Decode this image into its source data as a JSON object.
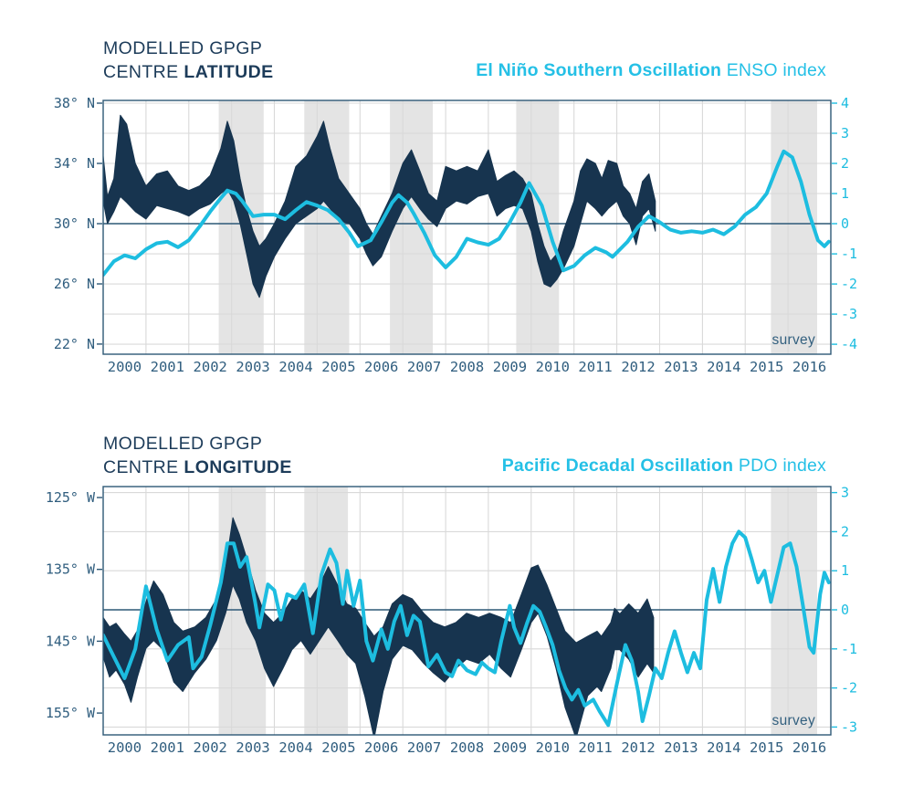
{
  "colors": {
    "navy_band": "#17344f",
    "cyan": "#1dbde0",
    "title_navy": "#1d3c5a",
    "axis_text": "#2f5d7e",
    "grid": "#d9d9d9",
    "band_gray": "#e4e4e4",
    "frame": "#2d5876"
  },
  "chart_data": [
    {
      "type": "area+line",
      "title": {
        "line1": "MODELLED GPGP",
        "line2_prefix": "CENTRE ",
        "line2_bold": "LATITUDE"
      },
      "legend": {
        "bold": "El Niño Southern Oscillation",
        "regular": " ENSO index"
      },
      "survey_label": "survey",
      "x_axis": {
        "range": [
          2000,
          2017
        ],
        "tick_labels": [
          "2000",
          "2001",
          "2002",
          "2003",
          "2004",
          "2005",
          "2006",
          "2007",
          "2008",
          "2009",
          "2010",
          "2011",
          "2012",
          "2013",
          "2014",
          "2015",
          "2016"
        ],
        "grid": "yearly"
      },
      "left_axis": {
        "ticks": [
          38,
          34,
          30,
          26,
          22
        ],
        "labels": [
          "38° N",
          "34° N",
          "30° N",
          "26° N",
          "22° N"
        ],
        "range": [
          38.18,
          21.33
        ]
      },
      "right_axis": {
        "ticks": [
          4,
          3,
          2,
          1,
          0,
          -1,
          -2,
          -3,
          -4
        ],
        "labels": [
          "4",
          "3",
          "2",
          "1",
          "0",
          "-1",
          "-2",
          "-3",
          "-4"
        ],
        "range": [
          4.09,
          -4.33
        ]
      },
      "highlight_bands": [
        [
          2002.7,
          2003.75
        ],
        [
          2004.7,
          2005.75
        ],
        [
          2006.7,
          2007.7
        ],
        [
          2009.65,
          2010.65
        ],
        [
          2015.6,
          2016.68
        ]
      ],
      "band_series": {
        "name": "Modelled GPGP centre latitude range (°N)",
        "t": [
          2000.0,
          2000.1,
          2000.25,
          2000.4,
          2000.55,
          2000.75,
          2001.0,
          2001.25,
          2001.5,
          2001.75,
          2002.0,
          2002.25,
          2002.5,
          2002.75,
          2002.9,
          2003.05,
          2003.2,
          2003.35,
          2003.5,
          2003.65,
          2003.8,
          2004.0,
          2004.25,
          2004.5,
          2004.75,
          2005.0,
          2005.15,
          2005.3,
          2005.5,
          2005.75,
          2006.0,
          2006.15,
          2006.3,
          2006.5,
          2006.75,
          2007.0,
          2007.2,
          2007.4,
          2007.6,
          2007.8,
          2008.0,
          2008.25,
          2008.5,
          2008.75,
          2009.0,
          2009.2,
          2009.4,
          2009.6,
          2009.8,
          2010.0,
          2010.15,
          2010.3,
          2010.45,
          2010.6,
          2010.75,
          2011.0,
          2011.15,
          2011.3,
          2011.5,
          2011.65,
          2011.8,
          2012.0,
          2012.15,
          2012.3,
          2012.45,
          2012.6,
          2012.75,
          2012.9
        ],
        "lower": [
          31.5,
          30.0,
          30.8,
          31.8,
          31.4,
          30.8,
          30.3,
          31.2,
          31.0,
          30.8,
          30.5,
          31.0,
          31.3,
          32.0,
          32.3,
          31.5,
          30.0,
          28.0,
          26.0,
          25.1,
          26.5,
          27.8,
          29.0,
          30.0,
          30.5,
          31.0,
          31.5,
          31.0,
          30.2,
          30.0,
          29.0,
          28.0,
          27.2,
          27.8,
          29.5,
          31.0,
          31.8,
          31.0,
          30.3,
          29.8,
          31.0,
          31.5,
          31.3,
          31.8,
          32.0,
          30.5,
          31.0,
          31.2,
          31.0,
          29.5,
          27.5,
          26.0,
          25.8,
          26.3,
          27.0,
          28.5,
          30.0,
          31.5,
          31.0,
          30.5,
          31.0,
          31.5,
          30.5,
          30.0,
          28.6,
          30.5,
          31.0,
          29.5
        ],
        "upper": [
          34.5,
          31.8,
          33.0,
          37.2,
          36.6,
          34.0,
          32.5,
          33.3,
          33.5,
          32.5,
          32.2,
          32.5,
          33.2,
          35.0,
          36.8,
          35.5,
          33.0,
          31.0,
          29.5,
          28.5,
          29.0,
          30.0,
          31.5,
          33.8,
          34.5,
          35.8,
          36.8,
          35.0,
          33.0,
          32.0,
          31.0,
          30.0,
          29.3,
          30.5,
          32.0,
          34.0,
          34.9,
          33.5,
          32.0,
          31.5,
          33.8,
          33.5,
          33.8,
          33.5,
          34.9,
          32.8,
          33.2,
          33.5,
          33.0,
          32.0,
          30.0,
          28.5,
          27.5,
          28.0,
          29.5,
          31.5,
          33.5,
          34.3,
          34.0,
          33.0,
          34.2,
          34.0,
          32.5,
          32.0,
          31.0,
          32.8,
          33.3,
          31.5
        ]
      },
      "line_series": {
        "name": "ENSO index",
        "t": [
          2000.0,
          2000.25,
          2000.5,
          2000.75,
          2001.0,
          2001.25,
          2001.5,
          2001.75,
          2002.0,
          2002.25,
          2002.5,
          2002.75,
          2002.9,
          2003.1,
          2003.25,
          2003.5,
          2003.75,
          2004.0,
          2004.25,
          2004.5,
          2004.75,
          2005.0,
          2005.25,
          2005.5,
          2005.75,
          2005.95,
          2006.25,
          2006.5,
          2006.75,
          2006.9,
          2007.1,
          2007.25,
          2007.5,
          2007.75,
          2008.0,
          2008.25,
          2008.5,
          2008.75,
          2009.0,
          2009.25,
          2009.5,
          2009.75,
          2009.95,
          2010.25,
          2010.5,
          2010.75,
          2011.0,
          2011.25,
          2011.5,
          2011.75,
          2011.9,
          2012.25,
          2012.5,
          2012.75,
          2013.0,
          2013.25,
          2013.5,
          2013.75,
          2014.0,
          2014.25,
          2014.5,
          2014.75,
          2015.0,
          2015.25,
          2015.5,
          2015.75,
          2015.9,
          2016.1,
          2016.3,
          2016.5,
          2016.7,
          2016.85,
          2016.95
        ],
        "v": [
          -1.7,
          -1.25,
          -1.05,
          -1.15,
          -0.85,
          -0.65,
          -0.6,
          -0.78,
          -0.55,
          -0.1,
          0.4,
          0.85,
          1.1,
          1.0,
          0.75,
          0.25,
          0.3,
          0.3,
          0.15,
          0.45,
          0.72,
          0.6,
          0.45,
          0.15,
          -0.3,
          -0.75,
          -0.55,
          0.05,
          0.7,
          0.95,
          0.7,
          0.35,
          -0.3,
          -1.05,
          -1.45,
          -1.1,
          -0.5,
          -0.62,
          -0.7,
          -0.5,
          0.05,
          0.7,
          1.35,
          0.6,
          -0.6,
          -1.55,
          -1.4,
          -1.05,
          -0.8,
          -0.95,
          -1.1,
          -0.6,
          -0.1,
          0.25,
          0.05,
          -0.2,
          -0.3,
          -0.25,
          -0.3,
          -0.2,
          -0.35,
          -0.1,
          0.3,
          0.55,
          1.0,
          1.9,
          2.4,
          2.2,
          1.4,
          0.3,
          -0.55,
          -0.75,
          -0.6
        ]
      }
    },
    {
      "type": "area+line",
      "title": {
        "line1": "MODELLED GPGP",
        "line2_prefix": "CENTRE ",
        "line2_bold": "LONGITUDE"
      },
      "legend": {
        "bold": "Pacific Decadal Oscillation",
        "regular": " PDO index"
      },
      "survey_label": "survey",
      "x_axis": {
        "range": [
          2000,
          2017
        ],
        "tick_labels": [
          "2000",
          "2001",
          "2002",
          "2003",
          "2004",
          "2005",
          "2006",
          "2007",
          "2008",
          "2009",
          "2010",
          "2011",
          "2012",
          "2013",
          "2014",
          "2015",
          "2016"
        ],
        "grid": "yearly"
      },
      "left_axis": {
        "ticks": [
          125,
          135,
          145,
          155
        ],
        "labels": [
          "125° W",
          "135° W",
          "145° W",
          "155° W"
        ],
        "range": [
          123.47,
          158.04
        ]
      },
      "right_axis": {
        "ticks": [
          3,
          2,
          1,
          0,
          -1,
          -2,
          -3
        ],
        "labels": [
          "3",
          "2",
          "1",
          "0",
          "-1",
          "-2",
          "-3"
        ],
        "range": [
          3.154,
          -3.201
        ]
      },
      "highlight_bands": [
        [
          2002.7,
          2003.8
        ],
        [
          2004.7,
          2005.72
        ],
        [
          2015.6,
          2016.68
        ]
      ],
      "band_series": {
        "name": "Modelled GPGP centre longitude range (°W)",
        "t": [
          2000.0,
          2000.15,
          2000.3,
          2000.5,
          2000.65,
          2000.8,
          2001.0,
          2001.18,
          2001.4,
          2001.65,
          2001.86,
          2002.14,
          2002.4,
          2002.65,
          2002.86,
          2003.03,
          2003.18,
          2003.35,
          2003.56,
          2003.77,
          2003.98,
          2004.2,
          2004.41,
          2004.62,
          2004.84,
          2005.05,
          2005.26,
          2005.48,
          2005.69,
          2005.9,
          2006.11,
          2006.33,
          2006.54,
          2006.75,
          2007.0,
          2007.22,
          2007.49,
          2007.71,
          2007.98,
          2008.24,
          2008.49,
          2008.77,
          2009.03,
          2009.3,
          2009.52,
          2009.77,
          2010.0,
          2010.16,
          2010.37,
          2010.58,
          2010.79,
          2011.05,
          2011.32,
          2011.54,
          2011.64,
          2011.86,
          2011.95,
          2012.07,
          2012.28,
          2012.5,
          2012.71,
          2012.86
        ],
        "upper": [
          141.7,
          143.0,
          142.5,
          144.0,
          145.0,
          143.5,
          139.5,
          136.6,
          138.5,
          142.4,
          143.6,
          143.0,
          141.7,
          139.1,
          134.6,
          127.8,
          130.1,
          133.4,
          137.9,
          141.1,
          142.4,
          141.1,
          139.1,
          137.9,
          139.1,
          137.2,
          134.6,
          137.2,
          139.8,
          140.4,
          142.4,
          144.3,
          143.0,
          139.8,
          138.5,
          139.1,
          141.1,
          142.4,
          143.0,
          142.4,
          141.1,
          141.7,
          141.1,
          141.7,
          142.4,
          138.5,
          134.8,
          134.4,
          137.2,
          140.4,
          143.6,
          145.2,
          144.3,
          143.6,
          144.3,
          142.4,
          140.4,
          141.2,
          139.8,
          141.1,
          139.1,
          141.7
        ],
        "lower": [
          147.2,
          150.0,
          149.0,
          151.0,
          153.5,
          150.0,
          146.0,
          144.9,
          146.2,
          150.7,
          152.0,
          149.4,
          147.5,
          144.9,
          141.1,
          137.2,
          139.1,
          142.4,
          144.9,
          148.8,
          151.3,
          148.8,
          146.2,
          144.9,
          146.8,
          144.9,
          143.0,
          144.9,
          146.8,
          148.1,
          152.6,
          158.5,
          152.0,
          147.5,
          145.6,
          146.2,
          148.1,
          149.4,
          150.7,
          148.8,
          147.5,
          148.1,
          146.8,
          148.8,
          150.0,
          146.2,
          142.4,
          141.1,
          144.3,
          148.8,
          154.2,
          158.5,
          152.6,
          151.3,
          152.0,
          148.8,
          146.2,
          146.2,
          147.5,
          150.0,
          148.1,
          149.4
        ]
      },
      "line_series": {
        "name": "PDO index",
        "t": [
          2000.0,
          2000.25,
          2000.5,
          2000.75,
          2001.0,
          2001.25,
          2001.5,
          2001.75,
          2002.0,
          2002.1,
          2002.3,
          2002.5,
          2002.75,
          2002.9,
          2003.05,
          2003.2,
          2003.35,
          2003.55,
          2003.65,
          2003.85,
          2004.0,
          2004.15,
          2004.3,
          2004.5,
          2004.7,
          2004.9,
          2005.1,
          2005.3,
          2005.45,
          2005.6,
          2005.7,
          2005.85,
          2006.0,
          2006.15,
          2006.3,
          2006.5,
          2006.65,
          2006.8,
          2006.95,
          2007.1,
          2007.25,
          2007.4,
          2007.6,
          2007.8,
          2008.0,
          2008.15,
          2008.3,
          2008.5,
          2008.7,
          2008.85,
          2009.0,
          2009.15,
          2009.3,
          2009.5,
          2009.6,
          2009.75,
          2009.9,
          2010.05,
          2010.2,
          2010.35,
          2010.5,
          2010.65,
          2010.8,
          2010.95,
          2011.1,
          2011.25,
          2011.45,
          2011.6,
          2011.8,
          2012.0,
          2012.2,
          2012.35,
          2012.5,
          2012.6,
          2012.75,
          2012.9,
          2013.05,
          2013.2,
          2013.35,
          2013.5,
          2013.65,
          2013.8,
          2013.95,
          2014.1,
          2014.25,
          2014.4,
          2014.55,
          2014.7,
          2014.85,
          2015.0,
          2015.15,
          2015.3,
          2015.45,
          2015.6,
          2015.75,
          2015.9,
          2016.05,
          2016.2,
          2016.35,
          2016.5,
          2016.6,
          2016.75,
          2016.85,
          2016.95
        ],
        "v": [
          -0.65,
          -1.2,
          -1.75,
          -1.0,
          0.6,
          -0.5,
          -1.3,
          -0.9,
          -0.7,
          -1.5,
          -1.2,
          -0.4,
          0.7,
          1.7,
          1.7,
          1.1,
          1.35,
          0.2,
          -0.45,
          0.65,
          0.5,
          -0.25,
          0.4,
          0.3,
          0.65,
          -0.6,
          0.9,
          1.55,
          1.2,
          0.15,
          1.0,
          0.1,
          0.75,
          -0.8,
          -1.3,
          -0.5,
          -1.0,
          -0.3,
          0.1,
          -0.65,
          -0.15,
          -0.3,
          -1.45,
          -1.15,
          -1.6,
          -1.7,
          -1.3,
          -1.55,
          -1.65,
          -1.35,
          -1.5,
          -1.6,
          -0.8,
          0.1,
          -0.45,
          -0.85,
          -0.35,
          0.1,
          -0.05,
          -0.45,
          -0.9,
          -1.55,
          -2.0,
          -2.3,
          -2.05,
          -2.45,
          -2.3,
          -2.6,
          -2.95,
          -1.9,
          -0.9,
          -1.3,
          -2.1,
          -2.85,
          -2.2,
          -1.5,
          -1.75,
          -1.1,
          -0.55,
          -1.1,
          -1.6,
          -1.1,
          -1.5,
          0.25,
          1.05,
          0.2,
          1.1,
          1.7,
          2.0,
          1.85,
          1.3,
          0.7,
          1.0,
          0.2,
          0.9,
          1.6,
          1.7,
          1.1,
          0.1,
          -0.95,
          -1.1,
          0.4,
          0.95,
          0.7
        ]
      }
    }
  ]
}
